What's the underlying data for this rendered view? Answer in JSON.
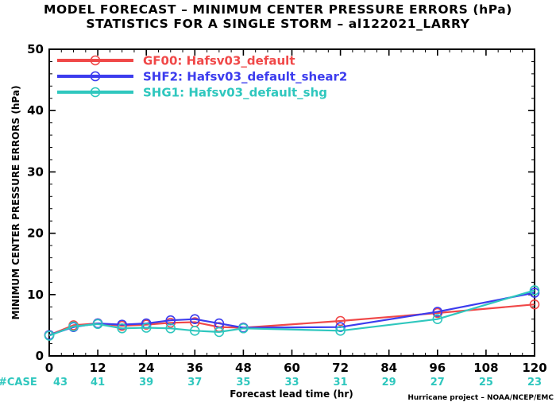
{
  "chart_data": {
    "type": "line",
    "title_line1": "MODEL FORECAST – MINIMUM CENTER PRESSURE ERRORS (hPa)",
    "title_line2": "STATISTICS FOR A SINGLE STORM – al122021_LARRY",
    "xlabel": "Forecast lead time (hr)",
    "ylabel": "MINIMUM CENTER PRESSURE ERRORS (hPa)",
    "xlim": [
      0,
      120
    ],
    "ylim": [
      0,
      50
    ],
    "x_ticks": [
      0,
      12,
      24,
      36,
      48,
      60,
      72,
      84,
      96,
      108,
      120
    ],
    "y_ticks": [
      0,
      10,
      20,
      30,
      40,
      50
    ],
    "case_label": "#CASE",
    "case_counts": [
      "43",
      "41",
      "39",
      "37",
      "35",
      "33",
      "31",
      "29",
      "27",
      "25",
      "23"
    ],
    "case_color": "#2fc7be",
    "credit": "Hurricane project – NOAA/NCEP/EMC",
    "legend_position": "top-left",
    "series": [
      {
        "name": "GF00: Hafsv03_default",
        "color": "#f04848",
        "x": [
          0,
          6,
          12,
          18,
          24,
          30,
          36,
          42,
          48,
          72,
          96,
          120
        ],
        "y": [
          3.4,
          5.0,
          5.3,
          4.9,
          5.1,
          5.4,
          5.5,
          4.7,
          4.6,
          5.7,
          7.0,
          8.4
        ]
      },
      {
        "name": "SHF2: Hafsv03_default_shear2",
        "color": "#3c3cee",
        "x": [
          0,
          6,
          12,
          18,
          24,
          30,
          36,
          42,
          48,
          72,
          96,
          120
        ],
        "y": [
          3.4,
          4.7,
          5.3,
          5.1,
          5.3,
          5.8,
          6.0,
          5.3,
          4.6,
          4.7,
          7.2,
          10.3
        ]
      },
      {
        "name": "SHG1: Hafsv03_default_shg",
        "color": "#2fc7be",
        "x": [
          0,
          6,
          12,
          18,
          24,
          30,
          36,
          42,
          48,
          72,
          96,
          120
        ],
        "y": [
          3.3,
          4.8,
          5.2,
          4.5,
          4.6,
          4.5,
          4.1,
          3.9,
          4.5,
          4.1,
          6.0,
          10.7
        ]
      }
    ]
  }
}
